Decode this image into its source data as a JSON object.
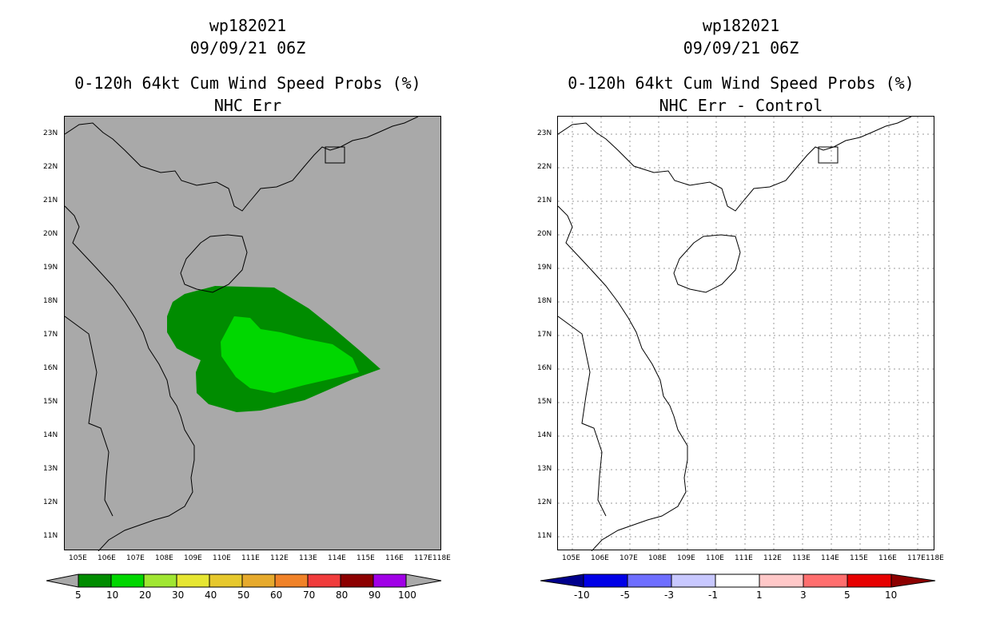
{
  "left_panel": {
    "title_line1": "wp182021",
    "title_line2": "09/09/21 06Z",
    "title_line3": "0-120h 64kt Cum Wind Speed Probs (%)",
    "title_line4": "NHC Err",
    "background_color": "#a9a9a9",
    "colorbar": {
      "labels": [
        "5",
        "10",
        "20",
        "30",
        "40",
        "50",
        "60",
        "70",
        "80",
        "90",
        "100"
      ],
      "colors": [
        "#008c00",
        "#00d700",
        "#a0e632",
        "#e6e632",
        "#e6c82d",
        "#e6aa2d",
        "#f08228",
        "#f03c3c",
        "#8c0000",
        "#a000e6"
      ]
    },
    "contours": [
      {
        "level": "5-10",
        "color": "#008c00"
      },
      {
        "level": "10-20",
        "color": "#00d700"
      }
    ]
  },
  "right_panel": {
    "title_line1": "wp182021",
    "title_line2": "09/09/21 06Z",
    "title_line3": "0-120h 64kt Cum Wind Speed Probs (%)",
    "title_line4": "NHC Err - Control",
    "background_color": "#ffffff",
    "colorbar": {
      "labels": [
        "-10",
        "-5",
        "-3",
        "-1",
        "1",
        "3",
        "5",
        "10"
      ],
      "colors": [
        "#00008c",
        "#0000e6",
        "#6e6eff",
        "#c8c8ff",
        "#ffffff",
        "#ffc8c8",
        "#ff6e6e",
        "#e60000",
        "#8c0000"
      ]
    }
  },
  "lat_labels": [
    "23N",
    "22N",
    "21N",
    "20N",
    "19N",
    "18N",
    "17N",
    "16N",
    "15N",
    "14N",
    "13N",
    "12N",
    "11N"
  ],
  "lon_labels": [
    "105E",
    "106E",
    "107E",
    "108E",
    "109E",
    "110E",
    "111E",
    "112E",
    "113E",
    "114E",
    "115E",
    "116E",
    "117E",
    "118E"
  ]
}
